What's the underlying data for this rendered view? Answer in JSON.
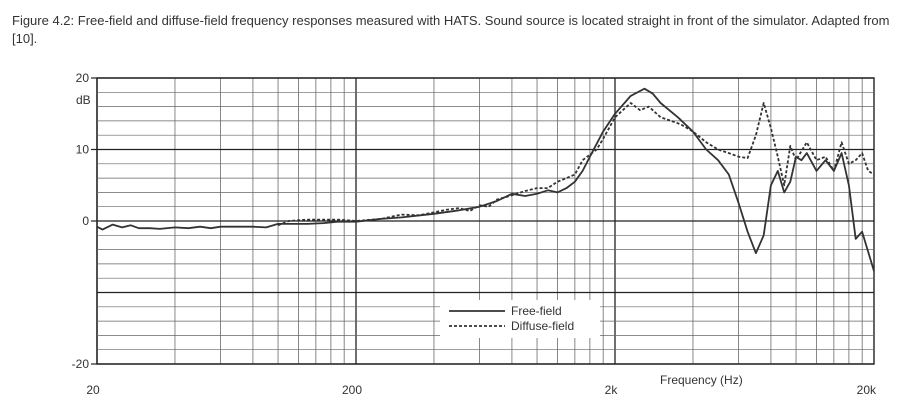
{
  "figure": {
    "caption": "Figure 4.2: Free-field and diffuse-field frequency responses measured with HATS. Sound source is located straight in front of the simulator. Adapted from [10]."
  },
  "chart_data": {
    "type": "line",
    "title": "",
    "xlabel": "Frequency (Hz)",
    "ylabel": "dB",
    "x_scale": "log",
    "xlim": [
      20,
      20000
    ],
    "ylim": [
      -20,
      20
    ],
    "x_ticks": [
      {
        "value": 20,
        "label": "20"
      },
      {
        "value": 200,
        "label": "200"
      },
      {
        "value": 2000,
        "label": "2k"
      },
      {
        "value": 20000,
        "label": "20k"
      }
    ],
    "y_ticks": [
      {
        "value": 20,
        "label": "20"
      },
      {
        "value": 10,
        "label": "10"
      },
      {
        "value": 0,
        "label": "0"
      },
      {
        "value": -20,
        "label": "-20"
      }
    ],
    "y_unit_label": "dB",
    "grid": true,
    "legend_position": "bottom-center",
    "series": [
      {
        "name": "Free-field",
        "style": "solid",
        "color": "#333333",
        "points": [
          [
            20,
            -0.8
          ],
          [
            21,
            -1.2
          ],
          [
            23,
            -0.5
          ],
          [
            25,
            -0.9
          ],
          [
            27,
            -0.6
          ],
          [
            29,
            -1.0
          ],
          [
            32,
            -1.0
          ],
          [
            35,
            -1.1
          ],
          [
            40,
            -0.9
          ],
          [
            45,
            -1.0
          ],
          [
            50,
            -0.8
          ],
          [
            55,
            -1.0
          ],
          [
            60,
            -0.8
          ],
          [
            70,
            -0.8
          ],
          [
            80,
            -0.8
          ],
          [
            90,
            -0.9
          ],
          [
            100,
            -0.4
          ],
          [
            110,
            -0.4
          ],
          [
            130,
            -0.4
          ],
          [
            150,
            -0.3
          ],
          [
            170,
            -0.1
          ],
          [
            200,
            -0.1
          ],
          [
            250,
            0.3
          ],
          [
            300,
            0.5
          ],
          [
            400,
            1.0
          ],
          [
            500,
            1.5
          ],
          [
            600,
            2.0
          ],
          [
            700,
            2.8
          ],
          [
            800,
            3.8
          ],
          [
            900,
            3.5
          ],
          [
            1000,
            3.8
          ],
          [
            1100,
            4.3
          ],
          [
            1200,
            4.0
          ],
          [
            1300,
            4.6
          ],
          [
            1400,
            5.5
          ],
          [
            1500,
            7.0
          ],
          [
            1600,
            9.0
          ],
          [
            1800,
            12.5
          ],
          [
            2000,
            15.0
          ],
          [
            2300,
            17.5
          ],
          [
            2600,
            18.5
          ],
          [
            2800,
            17.8
          ],
          [
            3000,
            16.5
          ],
          [
            3500,
            14.5
          ],
          [
            4000,
            12.5
          ],
          [
            4500,
            10.0
          ],
          [
            5000,
            8.5
          ],
          [
            5500,
            6.5
          ],
          [
            6000,
            2.5
          ],
          [
            6500,
            -1.5
          ],
          [
            7000,
            -4.5
          ],
          [
            7500,
            -2.0
          ],
          [
            8000,
            5.0
          ],
          [
            8500,
            7.0
          ],
          [
            9000,
            4.0
          ],
          [
            9500,
            5.5
          ],
          [
            10000,
            9.0
          ],
          [
            10500,
            8.5
          ],
          [
            11000,
            9.5
          ],
          [
            12000,
            7.0
          ],
          [
            13000,
            8.5
          ],
          [
            14000,
            7.0
          ],
          [
            15000,
            9.5
          ],
          [
            16000,
            5.0
          ],
          [
            17000,
            -2.5
          ],
          [
            18000,
            -1.5
          ],
          [
            20000,
            -7.0
          ]
        ]
      },
      {
        "name": "Diffuse-field",
        "style": "dashed",
        "color": "#333333",
        "points": [
          [
            100,
            -0.6
          ],
          [
            110,
            0.0
          ],
          [
            130,
            0.2
          ],
          [
            150,
            0.2
          ],
          [
            170,
            0.2
          ],
          [
            200,
            0.0
          ],
          [
            250,
            0.3
          ],
          [
            300,
            0.9
          ],
          [
            350,
            0.8
          ],
          [
            400,
            1.2
          ],
          [
            450,
            1.6
          ],
          [
            500,
            1.8
          ],
          [
            550,
            1.4
          ],
          [
            600,
            2.2
          ],
          [
            650,
            2.0
          ],
          [
            700,
            3.0
          ],
          [
            800,
            3.6
          ],
          [
            900,
            4.2
          ],
          [
            1000,
            4.6
          ],
          [
            1100,
            4.6
          ],
          [
            1200,
            5.5
          ],
          [
            1300,
            6.0
          ],
          [
            1400,
            6.5
          ],
          [
            1500,
            8.5
          ],
          [
            1700,
            10.0
          ],
          [
            1800,
            11.5
          ],
          [
            2000,
            14.5
          ],
          [
            2300,
            16.5
          ],
          [
            2500,
            15.5
          ],
          [
            2700,
            16.0
          ],
          [
            3000,
            14.5
          ],
          [
            3300,
            14.0
          ],
          [
            3600,
            13.5
          ],
          [
            4000,
            12.5
          ],
          [
            4500,
            11.0
          ],
          [
            5000,
            10.0
          ],
          [
            5500,
            9.5
          ],
          [
            6000,
            9.0
          ],
          [
            6500,
            8.8
          ],
          [
            7000,
            12.0
          ],
          [
            7500,
            16.5
          ],
          [
            8000,
            13.0
          ],
          [
            8500,
            9.0
          ],
          [
            9000,
            5.0
          ],
          [
            9500,
            10.5
          ],
          [
            10000,
            8.5
          ],
          [
            11000,
            11.0
          ],
          [
            12000,
            8.5
          ],
          [
            13000,
            9.0
          ],
          [
            14000,
            7.0
          ],
          [
            15000,
            11.0
          ],
          [
            16000,
            8.0
          ],
          [
            17000,
            8.5
          ],
          [
            18000,
            9.5
          ],
          [
            19000,
            7.0
          ],
          [
            20000,
            6.5
          ]
        ]
      }
    ]
  }
}
